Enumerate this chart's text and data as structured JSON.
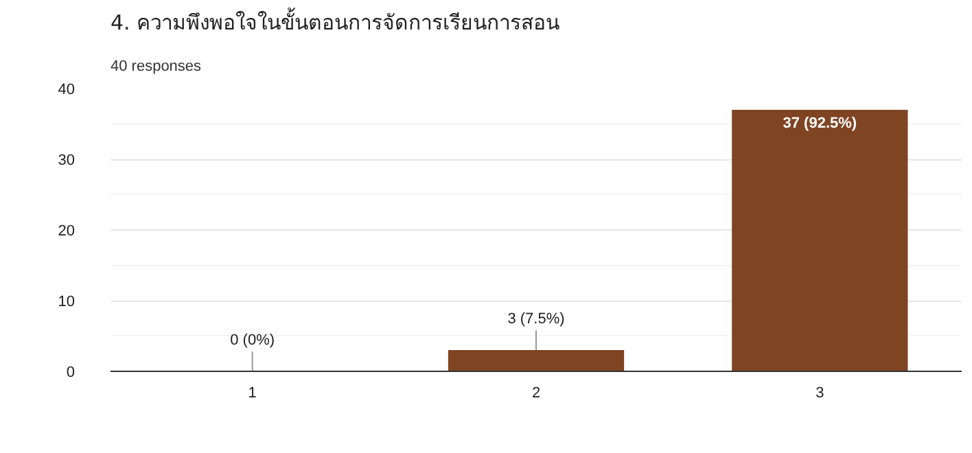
{
  "chart_data": {
    "type": "bar",
    "title": "4. ความพึงพอใจในขั้นตอนการจัดการเรียนการสอน",
    "subtitle": "40 responses",
    "categories": [
      "1",
      "2",
      "3"
    ],
    "values": [
      0,
      3,
      37
    ],
    "value_labels": [
      "0 (0%)",
      "3 (7.5%)",
      "37 (92.5%)"
    ],
    "color": "#7f4422",
    "ylim": [
      0,
      40
    ],
    "yticks": [
      0,
      10,
      20,
      30,
      40
    ],
    "grid": "y"
  }
}
